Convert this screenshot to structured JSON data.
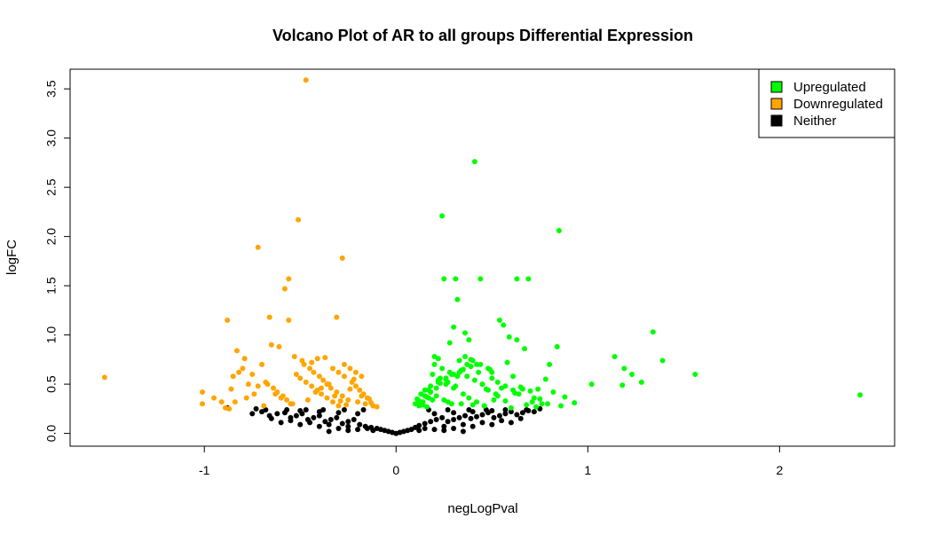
{
  "chart_data": {
    "type": "scatter",
    "title": "Volcano Plot of AR to all groups Differential Expression",
    "xlabel": "negLogPval",
    "ylabel": "logFC",
    "xlim": [
      -1.7,
      2.6
    ],
    "ylim": [
      -0.13,
      3.7
    ],
    "xticks": [
      -1,
      0,
      1,
      2
    ],
    "xtick_labels": [
      "-1",
      "0",
      "1",
      "2"
    ],
    "yticks": [
      0.0,
      0.5,
      1.0,
      1.5,
      2.0,
      2.5,
      3.0,
      3.5
    ],
    "ytick_labels": [
      "0.0",
      "0.5",
      "1.0",
      "1.5",
      "2.0",
      "2.5",
      "3.0",
      "3.5"
    ],
    "grid": false,
    "legend_position": "top-right",
    "legend": [
      {
        "label": "Upregulated",
        "color": "#00ff00"
      },
      {
        "label": "Downregulated",
        "color": "#ffa500"
      },
      {
        "label": "Neither",
        "color": "#000000"
      }
    ],
    "series": [
      {
        "name": "Upregulated",
        "color": "#00ff00",
        "x": [
          0.41,
          0.24,
          0.85,
          0.25,
          0.31,
          0.44,
          0.63,
          0.69,
          0.32,
          0.54,
          0.56,
          1.34,
          0.59,
          0.63,
          0.67,
          0.84,
          1.14,
          1.39,
          1.19,
          1.23,
          1.56,
          1.28,
          1.02,
          1.18,
          2.42,
          0.93,
          0.88,
          0.74,
          0.71,
          0.78,
          0.8,
          0.47,
          0.5,
          0.53,
          0.28,
          0.3,
          0.36,
          0.38,
          0.2,
          0.22,
          0.33,
          0.42,
          0.49,
          0.52,
          0.58,
          0.61,
          0.65,
          0.72,
          0.76,
          0.82,
          0.86,
          0.6,
          0.57,
          0.46,
          0.4,
          0.34,
          0.27,
          0.19,
          0.17,
          0.15,
          0.13,
          0.11,
          0.1,
          0.12,
          0.14,
          0.16,
          0.18,
          0.21,
          0.23,
          0.26,
          0.29,
          0.35,
          0.37,
          0.39,
          0.43,
          0.45,
          0.48,
          0.51,
          0.55,
          0.62,
          0.66,
          0.68,
          0.7,
          0.73,
          0.75,
          0.79,
          0.2,
          0.24,
          0.28,
          0.32,
          0.22,
          0.26,
          0.3,
          0.18,
          0.21,
          0.25,
          0.29,
          0.19,
          0.23,
          0.27,
          0.31,
          0.17,
          0.35,
          0.38,
          0.42,
          0.46,
          0.5,
          0.53,
          0.57,
          0.61,
          0.64,
          0.36,
          0.4,
          0.44,
          0.48,
          0.33,
          0.37,
          0.41,
          0.45,
          0.16,
          0.14,
          0.13,
          0.12,
          0.15,
          0.18,
          0.22,
          0.26,
          0.3,
          0.34,
          0.39
        ],
        "y": [
          2.76,
          2.21,
          2.06,
          1.57,
          1.57,
          1.57,
          1.57,
          1.57,
          1.36,
          1.15,
          1.1,
          1.03,
          0.98,
          0.95,
          0.86,
          0.88,
          0.78,
          0.74,
          0.66,
          0.6,
          0.6,
          0.52,
          0.5,
          0.49,
          0.39,
          0.31,
          0.37,
          0.45,
          0.32,
          0.55,
          0.7,
          0.45,
          0.62,
          0.38,
          0.92,
          1.08,
          1.02,
          0.95,
          0.78,
          0.76,
          0.74,
          0.7,
          0.65,
          0.4,
          0.72,
          0.58,
          0.47,
          0.36,
          0.3,
          0.42,
          0.28,
          0.26,
          0.33,
          0.28,
          0.29,
          0.3,
          0.32,
          0.34,
          0.36,
          0.38,
          0.4,
          0.35,
          0.3,
          0.28,
          0.32,
          0.37,
          0.42,
          0.46,
          0.51,
          0.55,
          0.6,
          0.65,
          0.7,
          0.75,
          0.62,
          0.5,
          0.44,
          0.34,
          0.46,
          0.41,
          0.45,
          0.29,
          0.43,
          0.27,
          0.35,
          0.3,
          0.7,
          0.66,
          0.62,
          0.58,
          0.54,
          0.5,
          0.46,
          0.42,
          0.38,
          0.34,
          0.3,
          0.6,
          0.56,
          0.52,
          0.48,
          0.44,
          0.4,
          0.36,
          0.32,
          0.28,
          0.56,
          0.52,
          0.48,
          0.44,
          0.4,
          0.78,
          0.74,
          0.7,
          0.66,
          0.62,
          0.58,
          0.54,
          0.5,
          0.27,
          0.29,
          0.31,
          0.33,
          0.44,
          0.48,
          0.52,
          0.56,
          0.6,
          0.64,
          0.68
        ]
      },
      {
        "name": "Downregulated",
        "color": "#ffa500",
        "x": [
          -0.47,
          -0.51,
          -0.72,
          -0.28,
          -0.56,
          -0.58,
          -0.88,
          -0.66,
          -0.56,
          -0.31,
          -1.52,
          -1.01,
          -1.01,
          -0.85,
          -0.87,
          -0.79,
          -0.83,
          -0.8,
          -0.75,
          -0.68,
          -0.72,
          -0.63,
          -0.6,
          -0.55,
          -0.46,
          -0.42,
          -0.39,
          -0.35,
          -0.32,
          -0.29,
          -0.26,
          -0.24,
          -0.22,
          -0.2,
          -0.18,
          -0.16,
          -0.14,
          -0.12,
          -0.1,
          -0.95,
          -0.91,
          -0.86,
          -0.82,
          -0.77,
          -0.7,
          -0.65,
          -0.61,
          -0.53,
          -0.49,
          -0.44,
          -0.41,
          -0.37,
          -0.33,
          -0.3,
          -0.27,
          -0.23,
          -0.21,
          -0.19,
          -0.17,
          -0.15,
          -0.13,
          -0.48,
          -0.45,
          -0.43,
          -0.4,
          -0.38,
          -0.36,
          -0.34,
          -0.31,
          -0.28,
          -0.25,
          -0.52,
          -0.5,
          -0.47,
          -0.44,
          -0.41,
          -0.39,
          -0.36,
          -0.33,
          -0.3,
          -0.27,
          -0.24,
          -0.21,
          -0.18,
          -0.54,
          -0.57,
          -0.59,
          -0.62,
          -0.64,
          -0.67,
          -0.69,
          -0.74,
          -0.78,
          -0.84,
          -0.89
        ],
        "y": [
          3.59,
          2.17,
          1.89,
          1.78,
          1.57,
          1.47,
          1.15,
          1.18,
          1.15,
          1.18,
          0.57,
          0.42,
          0.3,
          0.58,
          0.25,
          0.76,
          0.84,
          0.66,
          0.6,
          0.52,
          0.48,
          0.4,
          0.36,
          0.3,
          0.34,
          0.42,
          0.46,
          0.5,
          0.38,
          0.33,
          0.29,
          0.45,
          0.55,
          0.32,
          0.38,
          0.3,
          0.35,
          0.28,
          0.27,
          0.36,
          0.32,
          0.45,
          0.62,
          0.5,
          0.7,
          0.9,
          0.88,
          0.78,
          0.74,
          0.72,
          0.76,
          0.77,
          0.66,
          0.62,
          0.58,
          0.52,
          0.48,
          0.44,
          0.4,
          0.36,
          0.31,
          0.7,
          0.66,
          0.62,
          0.58,
          0.54,
          0.5,
          0.46,
          0.42,
          0.38,
          0.34,
          0.6,
          0.56,
          0.52,
          0.48,
          0.44,
          0.4,
          0.36,
          0.32,
          0.28,
          0.7,
          0.66,
          0.62,
          0.58,
          0.3,
          0.34,
          0.38,
          0.42,
          0.46,
          0.5,
          0.28,
          0.4,
          0.36,
          0.32,
          0.26
        ]
      },
      {
        "name": "Neither",
        "color": "#000000",
        "x": [
          -0.88,
          -0.75,
          -0.73,
          -0.7,
          -0.66,
          -0.62,
          -0.58,
          -0.55,
          -0.52,
          -0.49,
          -0.46,
          -0.43,
          -0.4,
          -0.37,
          -0.34,
          -0.31,
          -0.28,
          -0.25,
          -0.22,
          -0.19,
          -0.16,
          -0.13,
          -0.1,
          -0.08,
          -0.06,
          -0.04,
          -0.02,
          0.0,
          0.02,
          0.04,
          0.06,
          0.08,
          0.1,
          0.12,
          0.15,
          0.18,
          0.21,
          0.24,
          0.27,
          0.3,
          0.33,
          0.36,
          0.39,
          0.42,
          0.45,
          0.48,
          0.51,
          0.54,
          0.57,
          0.6,
          0.63,
          0.66,
          0.69,
          0.72,
          0.75,
          -0.6,
          -0.5,
          -0.4,
          -0.3,
          -0.2,
          -0.12,
          0.12,
          0.2,
          0.3,
          0.4,
          0.5,
          0.6,
          -0.65,
          -0.55,
          -0.45,
          -0.35,
          -0.25,
          -0.15,
          0.15,
          0.25,
          0.35,
          0.45,
          0.55,
          0.65,
          -0.5,
          -0.4,
          -0.3,
          -0.2,
          0.2,
          0.3,
          0.4,
          0.5,
          -0.35,
          -0.25,
          0.25,
          0.35,
          -0.68,
          -0.57,
          -0.47,
          -0.38,
          -0.27,
          -0.17,
          0.17,
          0.27,
          0.38,
          0.47,
          0.57,
          0.68
        ],
        "y": [
          0.26,
          0.2,
          0.25,
          0.22,
          0.18,
          0.2,
          0.21,
          0.16,
          0.18,
          0.2,
          0.14,
          0.16,
          0.18,
          0.12,
          0.14,
          0.16,
          0.1,
          0.12,
          0.14,
          0.09,
          0.07,
          0.06,
          0.05,
          0.04,
          0.03,
          0.02,
          0.01,
          0.0,
          0.01,
          0.02,
          0.03,
          0.04,
          0.06,
          0.08,
          0.1,
          0.12,
          0.14,
          0.16,
          0.12,
          0.14,
          0.16,
          0.18,
          0.15,
          0.17,
          0.19,
          0.21,
          0.16,
          0.18,
          0.2,
          0.22,
          0.19,
          0.21,
          0.23,
          0.22,
          0.25,
          0.11,
          0.09,
          0.07,
          0.05,
          0.04,
          0.03,
          0.03,
          0.04,
          0.05,
          0.07,
          0.09,
          0.11,
          0.15,
          0.13,
          0.11,
          0.09,
          0.07,
          0.05,
          0.05,
          0.07,
          0.09,
          0.11,
          0.13,
          0.15,
          0.23,
          0.22,
          0.21,
          0.2,
          0.2,
          0.21,
          0.22,
          0.23,
          0.02,
          0.03,
          0.03,
          0.02,
          0.24,
          0.24,
          0.24,
          0.24,
          0.24,
          0.24,
          0.24,
          0.24,
          0.24,
          0.24,
          0.24,
          0.24
        ]
      }
    ]
  }
}
